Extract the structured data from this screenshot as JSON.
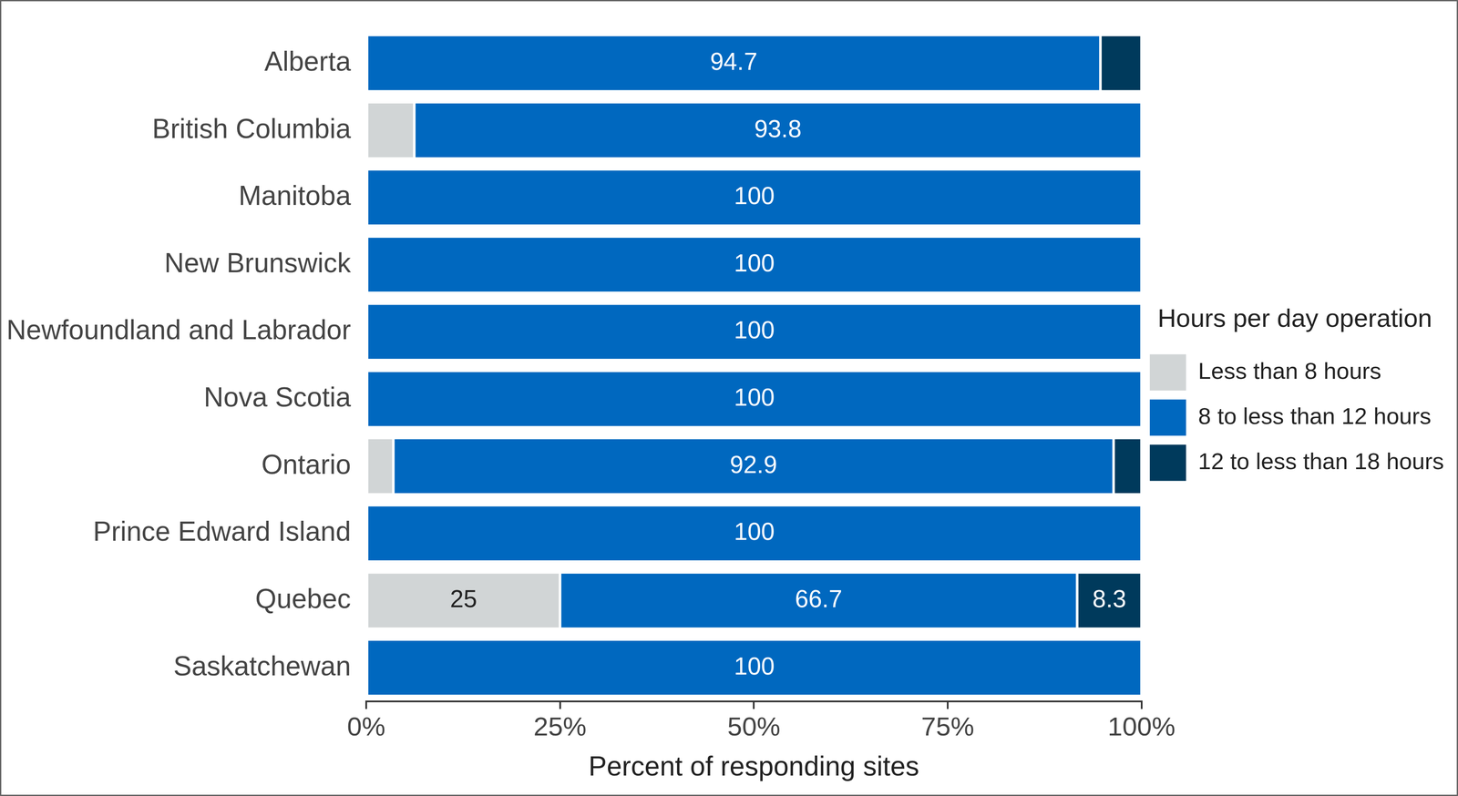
{
  "chart_data": {
    "type": "bar",
    "orientation": "horizontal",
    "stacked": true,
    "grid": false,
    "legend": "right",
    "data_labels": true,
    "legend_title": "Hours per day operation",
    "x_label": "Percent of responding sites",
    "categories": [
      "Alberta",
      "British Columbia",
      "Manitoba",
      "New Brunswick",
      "Newfoundland and Labrador",
      "Nova Scotia",
      "Ontario",
      "Prince Edward Island",
      "Quebec",
      "Saskatchewan"
    ],
    "series": [
      {
        "name": "Less than 8 hours",
        "color": "#d1d5d6",
        "values": [
          0,
          6.2,
          0,
          0,
          0,
          0,
          3.5,
          0,
          25,
          0
        ],
        "value_labels": [
          null,
          null,
          null,
          null,
          null,
          null,
          null,
          null,
          "25",
          null
        ]
      },
      {
        "name": "8 to less than 12 hours",
        "color": "#0068bf",
        "values": [
          94.7,
          93.8,
          100,
          100,
          100,
          100,
          92.9,
          100,
          66.7,
          100
        ],
        "value_labels": [
          "94.7",
          "93.8",
          "100",
          "100",
          "100",
          "100",
          "92.9",
          "100",
          "66.7",
          "100"
        ]
      },
      {
        "name": "12 to less than 18 hours",
        "color": "#003a5c",
        "values": [
          5.3,
          0,
          0,
          0,
          0,
          0,
          3.6,
          0,
          8.3,
          0
        ],
        "value_labels": [
          null,
          null,
          null,
          null,
          null,
          null,
          null,
          null,
          "8.3",
          null
        ]
      }
    ],
    "xlim": [
      0,
      100
    ],
    "xticks": [
      {
        "value": 0,
        "label": "0%"
      },
      {
        "value": 25,
        "label": "25%"
      },
      {
        "value": 50,
        "label": "50%"
      },
      {
        "value": 75,
        "label": "75%"
      },
      {
        "value": 100,
        "label": "100%"
      }
    ]
  }
}
